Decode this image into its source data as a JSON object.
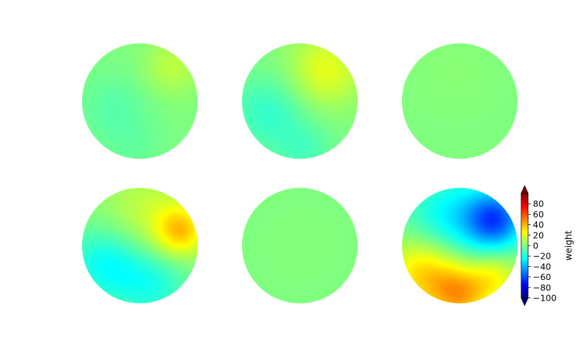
{
  "chart_data": {
    "type": "heatmap",
    "subtype": "topographic-map-grid",
    "rows": 2,
    "cols": 3,
    "colormap": "jet",
    "vmin": -100,
    "vmax": 100,
    "extend": "both",
    "maps": [
      {
        "blobs": [
          {
            "u": 0.55,
            "v": 0.6,
            "s": 0.35,
            "w": 12
          },
          {
            "u": -0.45,
            "v": -0.15,
            "s": 0.45,
            "w": -8
          },
          {
            "u": -0.05,
            "v": -0.85,
            "s": 0.35,
            "w": -4
          }
        ]
      },
      {
        "blobs": [
          {
            "u": 0.45,
            "v": 0.55,
            "s": 0.45,
            "w": 20
          },
          {
            "u": -0.55,
            "v": -0.2,
            "s": 0.45,
            "w": -15
          },
          {
            "u": 0.1,
            "v": -0.85,
            "s": 0.35,
            "w": -10
          }
        ]
      },
      {
        "blobs": [
          {
            "u": -0.1,
            "v": 0.5,
            "s": 0.5,
            "w": 2
          }
        ]
      },
      {
        "blobs": [
          {
            "u": 0.7,
            "v": 0.25,
            "s": 0.3,
            "w": 32
          },
          {
            "u": 0.15,
            "v": 0.5,
            "s": 0.6,
            "w": 14
          },
          {
            "u": -0.6,
            "v": -0.3,
            "s": 0.45,
            "w": -24
          },
          {
            "u": 0.2,
            "v": -0.65,
            "s": 0.45,
            "w": -20
          }
        ]
      },
      {
        "blobs": [
          {
            "u": 0.0,
            "v": 0.0,
            "s": 0.5,
            "w": 1
          }
        ]
      },
      {
        "blobs": [
          {
            "u": 0.62,
            "v": 0.45,
            "s": 0.35,
            "w": -55
          },
          {
            "u": -0.15,
            "v": 0.45,
            "s": 0.55,
            "w": -28
          },
          {
            "u": -0.6,
            "v": -0.45,
            "s": 0.45,
            "w": 35
          },
          {
            "u": 0.0,
            "v": -0.85,
            "s": 0.35,
            "w": 38
          },
          {
            "u": 0.6,
            "v": -0.55,
            "s": 0.3,
            "w": 22
          }
        ]
      }
    ],
    "colorbar": {
      "label": "weight",
      "ticks": [
        80,
        60,
        40,
        20,
        0,
        -20,
        -40,
        -60,
        -80,
        -100
      ],
      "tick_labels": [
        "80",
        "60",
        "40",
        "20",
        "0",
        "−20",
        "−40",
        "−60",
        "−80",
        "−100"
      ]
    }
  }
}
